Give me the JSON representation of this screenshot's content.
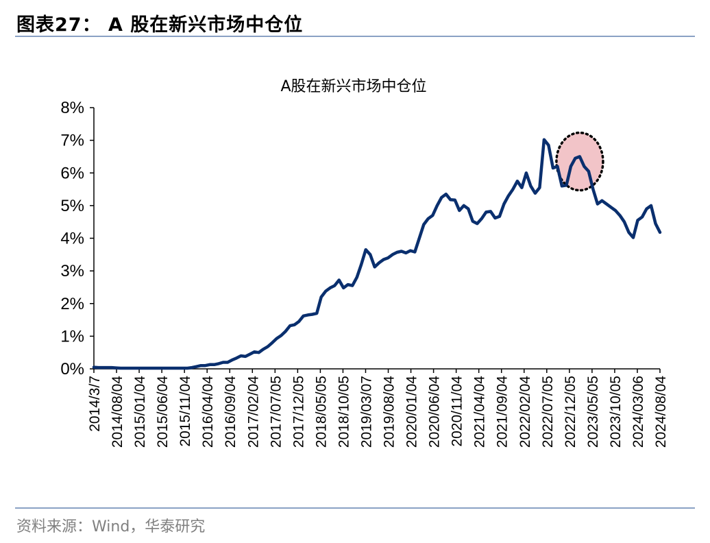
{
  "header": {
    "figure_title": "图表27：  A 股在新兴市场中仓位"
  },
  "footer": {
    "source": "资料来源：Wind，华泰研究"
  },
  "colors": {
    "line": "#0a2f6e",
    "highlight_fill": "#f2c4c8",
    "rule": "#8aa1c4"
  },
  "chart_data": {
    "type": "line",
    "title": "A股在新兴市场中仓位",
    "xlabel": "",
    "ylabel": "",
    "y_unit": "%",
    "ylim": [
      0,
      8
    ],
    "y_ticks": [
      "0%",
      "1%",
      "2%",
      "3%",
      "4%",
      "5%",
      "6%",
      "7%",
      "8%"
    ],
    "x_tick_labels": [
      "2014/3/7",
      "2014/08/04",
      "2015/01/04",
      "2015/06/04",
      "2015/11/04",
      "2016/04/04",
      "2016/09/04",
      "2017/02/04",
      "2017/07/05",
      "2017/12/05",
      "2018/05/05",
      "2018/10/05",
      "2019/03/07",
      "2019/08/04",
      "2020/01/04",
      "2020/06/04",
      "2020/11/04",
      "2021/04/04",
      "2021/09/04",
      "2022/02/04",
      "2022/07/05",
      "2022/12/05",
      "2023/05/05",
      "2023/10/05",
      "2024/03/06",
      "2024/08/04"
    ],
    "grid": false,
    "legend": "none",
    "series": [
      {
        "values": [
          0.05,
          0.04,
          0.04,
          0.04,
          0.04,
          0.03,
          0.02,
          0.02,
          0.02,
          0.02,
          0.02,
          0.02,
          0.02,
          0.02,
          0.02,
          0.02,
          0.02,
          0.02,
          0.02,
          0.02,
          0.02,
          0.02,
          0.04,
          0.07,
          0.1,
          0.1,
          0.13,
          0.13,
          0.16,
          0.2,
          0.2,
          0.27,
          0.33,
          0.4,
          0.38,
          0.45,
          0.52,
          0.5,
          0.6,
          0.68,
          0.8,
          0.93,
          1.02,
          1.15,
          1.32,
          1.35,
          1.45,
          1.62,
          1.65,
          1.67,
          1.7,
          2.2,
          2.38,
          2.48,
          2.55,
          2.72,
          2.48,
          2.58,
          2.55,
          2.8,
          3.2,
          3.65,
          3.5,
          3.12,
          3.25,
          3.35,
          3.4,
          3.5,
          3.57,
          3.6,
          3.55,
          3.62,
          3.58,
          4.0,
          4.42,
          4.6,
          4.7,
          5.0,
          5.25,
          5.35,
          5.18,
          5.17,
          4.85,
          5.0,
          4.9,
          4.52,
          4.45,
          4.6,
          4.8,
          4.82,
          4.62,
          4.67,
          5.05,
          5.3,
          5.5,
          5.75,
          5.55,
          6.0,
          5.6,
          5.38,
          5.55,
          7.02,
          6.85,
          6.15,
          6.2,
          5.6,
          5.62,
          6.2,
          6.45,
          6.5,
          6.2,
          6.05,
          5.5,
          5.05,
          5.15,
          5.05,
          4.95,
          4.85,
          4.7,
          4.5,
          4.18,
          4.02,
          4.55,
          4.65,
          4.9,
          5.0,
          4.45,
          4.18
        ]
      }
    ],
    "annotation": {
      "shape": "dotted-circle",
      "x_index_center": 109,
      "y_center": 6.35
    }
  }
}
